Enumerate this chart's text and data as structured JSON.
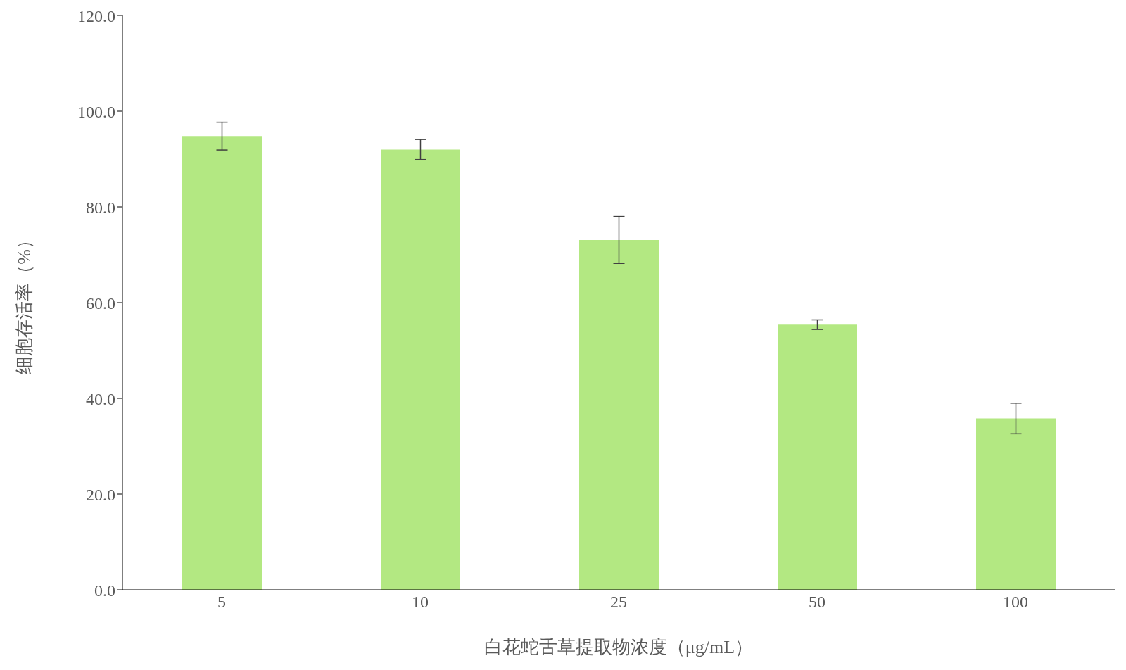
{
  "chart_data": {
    "type": "bar",
    "xlabel": "白花蛇舌草提取物浓度（μg/mL）",
    "ylabel": "细胞存活率（%）",
    "categories": [
      "5",
      "10",
      "25",
      "50",
      "100"
    ],
    "values": [
      94.8,
      92.0,
      73.1,
      55.4,
      35.8
    ],
    "errors": [
      2.9,
      2.1,
      4.9,
      1.0,
      3.2
    ],
    "color": "#b3e882",
    "ylim": [
      0,
      120
    ],
    "yticks": [
      {
        "value": 0,
        "label": "0.0"
      },
      {
        "value": 20,
        "label": "20.0"
      },
      {
        "value": 40,
        "label": "40.0"
      },
      {
        "value": 60,
        "label": "60.0"
      },
      {
        "value": 80,
        "label": "80.0"
      },
      {
        "value": 100,
        "label": "100.0"
      },
      {
        "value": 120,
        "label": "120.0"
      }
    ],
    "grid": false,
    "legend": false
  }
}
